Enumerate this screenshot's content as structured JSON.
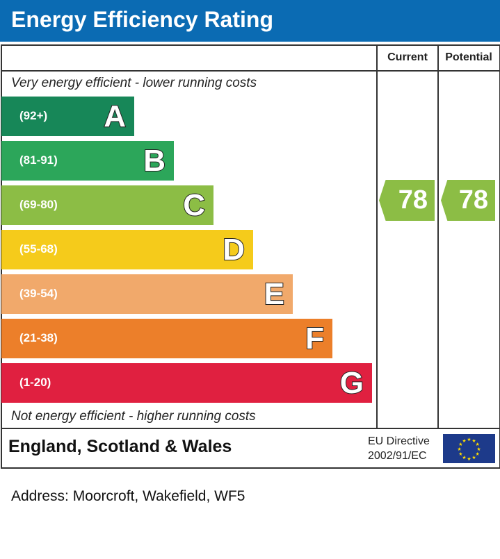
{
  "title": "Energy Efficiency Rating",
  "columns": {
    "current": "Current",
    "potential": "Potential"
  },
  "top_note": "Very energy efficient - lower running costs",
  "bottom_note": "Not energy efficient - higher running costs",
  "chart_data": {
    "type": "bar",
    "bands": [
      {
        "letter": "A",
        "range": "(92+)",
        "color": "#178758"
      },
      {
        "letter": "B",
        "range": "(81-91)",
        "color": "#2ca65a"
      },
      {
        "letter": "C",
        "range": "(69-80)",
        "color": "#8cbd45"
      },
      {
        "letter": "D",
        "range": "(55-68)",
        "color": "#f5cb1b"
      },
      {
        "letter": "E",
        "range": "(39-54)",
        "color": "#f1a96b"
      },
      {
        "letter": "F",
        "range": "(21-38)",
        "color": "#ec7f2a"
      },
      {
        "letter": "G",
        "range": "(1-20)",
        "color": "#e02040"
      }
    ],
    "current": {
      "value": "78",
      "band": "C"
    },
    "potential": {
      "value": "78",
      "band": "C"
    }
  },
  "footer": {
    "region": "England, Scotland & Wales",
    "directive_line1": "EU Directive",
    "directive_line2": "2002/91/EC",
    "flag": "eu-flag-icon"
  },
  "address": "Address: Moorcroft, Wakefield, WF5"
}
